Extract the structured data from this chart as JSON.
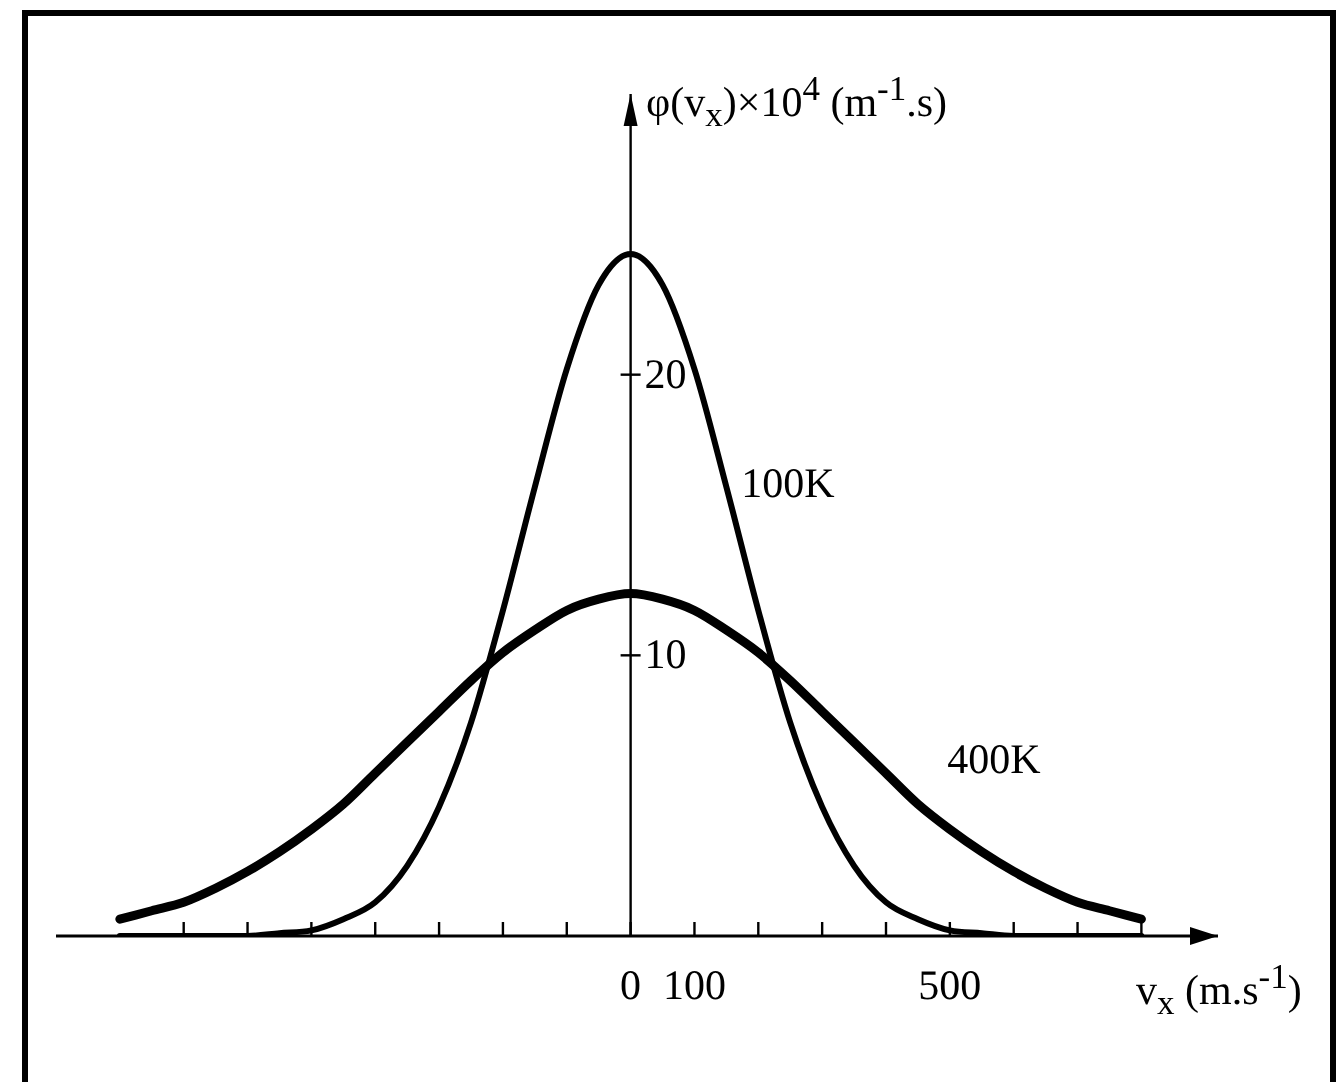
{
  "chart_data": {
    "type": "line",
    "x": [
      -800,
      -750,
      -700,
      -650,
      -600,
      -550,
      -500,
      -450,
      -400,
      -350,
      -300,
      -250,
      -200,
      -150,
      -100,
      -50,
      0,
      50,
      100,
      150,
      200,
      250,
      300,
      350,
      400,
      450,
      500,
      550,
      600,
      650,
      700,
      750,
      800
    ],
    "series": [
      {
        "name": "100K",
        "color": "#000000",
        "values": [
          0,
          0,
          0,
          0,
          0,
          0.1,
          0.2,
          0.6,
          1.2,
          2.5,
          4.6,
          7.6,
          11.6,
          16.0,
          20.2,
          23.2,
          24.3,
          23.2,
          20.2,
          16.0,
          11.6,
          7.6,
          4.6,
          2.5,
          1.2,
          0.6,
          0.2,
          0.1,
          0,
          0,
          0,
          0,
          0
        ]
      },
      {
        "name": "400K",
        "color": "#000000",
        "values": [
          0.6,
          0.9,
          1.2,
          1.7,
          2.3,
          3.0,
          3.8,
          4.7,
          5.8,
          6.9,
          8.0,
          9.1,
          10.1,
          10.9,
          11.6,
          12.0,
          12.2,
          12.0,
          11.6,
          10.9,
          10.1,
          9.1,
          8.0,
          6.9,
          5.8,
          4.7,
          3.8,
          3.0,
          2.3,
          1.7,
          1.2,
          0.9,
          0.6
        ]
      }
    ],
    "xlabel": "v$_{x}$ (m.s$^{-1}$)",
    "ylabel": "φ(v$_{x}$)×10$^{4}$ (m$^{-1}$.s)",
    "xlim": [
      -900,
      920
    ],
    "ylim": [
      0,
      30
    ],
    "xticks": [
      {
        "value": -700,
        "label": null
      },
      {
        "value": -600,
        "label": null
      },
      {
        "value": -500,
        "label": null
      },
      {
        "value": -400,
        "label": null
      },
      {
        "value": -300,
        "label": null
      },
      {
        "value": -200,
        "label": null
      },
      {
        "value": -100,
        "label": null
      },
      0,
      100,
      {
        "value": 200,
        "label": null
      },
      {
        "value": 300,
        "label": null
      },
      {
        "value": 400,
        "label": null
      },
      500,
      {
        "value": 600,
        "label": null
      },
      {
        "value": 700,
        "label": null
      },
      {
        "value": 800,
        "label": null
      }
    ],
    "yticks": [
      10,
      20
    ],
    "marker": "none"
  }
}
